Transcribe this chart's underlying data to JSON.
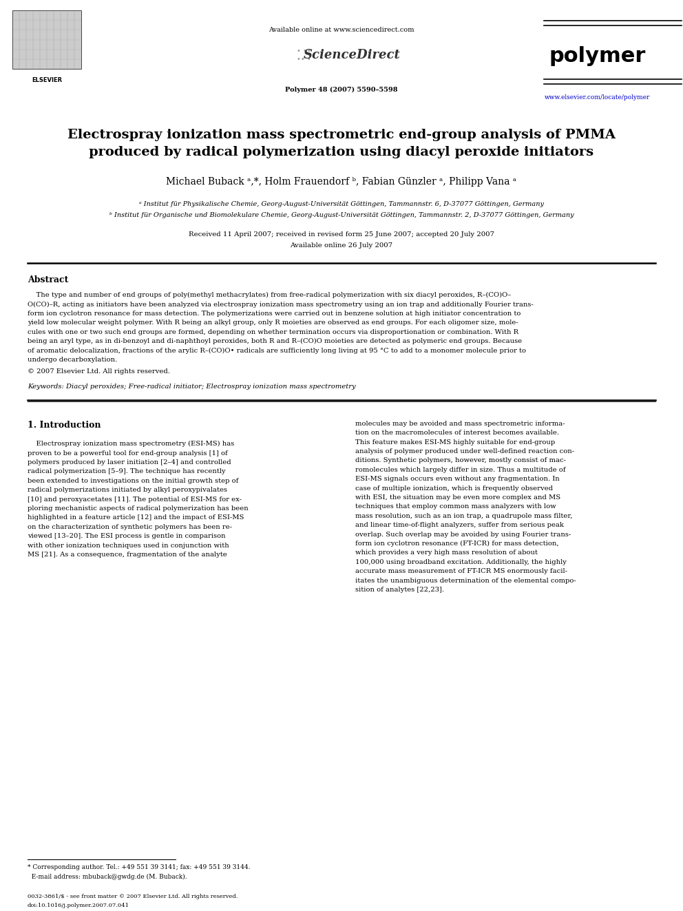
{
  "bg_color": "#ffffff",
  "page_width": 9.92,
  "page_height": 13.23,
  "header_available": "Available online at www.sciencedirect.com",
  "header_sd": "ScienceDirect",
  "header_journal_info": "Polymer 48 (2007) 5590–5598",
  "header_journal_name": "polymer",
  "header_url": "www.elsevier.com/locate/polymer",
  "header_elsevier": "ELSEVIER",
  "title_line1": "Electrospray ionization mass spectrometric end-group analysis of PMMA",
  "title_line2": "produced by radical polymerization using diacyl peroxide initiators",
  "authors": "Michael Buback ᵃ,*, Holm Frauendorf ᵇ, Fabian Günzler ᵃ, Philipp Vana ᵃ",
  "affil_a": "ᵃ Institut für Physikalische Chemie, Georg-August-Universität Göttingen, Tammannstr. 6, D-37077 Göttingen, Germany",
  "affil_b": "ᵇ Institut für Organische und Biomolekulare Chemie, Georg-August-Universität Göttingen, Tammannstr. 2, D-37077 Göttingen, Germany",
  "received": "Received 11 April 2007; received in revised form 25 June 2007; accepted 20 July 2007",
  "available_online": "Available online 26 July 2007",
  "abstract_title": "Abstract",
  "abstract_lines": [
    "    The type and number of end groups of poly(methyl methacrylates) from free-radical polymerization with six diacyl peroxides, R–(CO)O–",
    "O(CO)–R, acting as initiators have been analyzed via electrospray ionization mass spectrometry using an ion trap and additionally Fourier trans-",
    "form ion cyclotron resonance for mass detection. The polymerizations were carried out in benzene solution at high initiator concentration to",
    "yield low molecular weight polymer. With R being an alkyl group, only R moieties are observed as end groups. For each oligomer size, mole-",
    "cules with one or two such end groups are formed, depending on whether termination occurs via disproportionation or combination. With R",
    "being an aryl type, as in di-benzoyl and di-naphthoyl peroxides, both R and R–(CO)O moieties are detected as polymeric end groups. Because",
    "of aromatic delocalization, fractions of the arylic R–(CO)O• radicals are sufficiently long living at 95 °C to add to a monomer molecule prior to",
    "undergo decarboxylation."
  ],
  "copyright": "© 2007 Elsevier Ltd. All rights reserved.",
  "keywords": "Keywords: Diacyl peroxides; Free-radical initiator; Electrospray ionization mass spectrometry",
  "intro_title": "1. Introduction",
  "intro_col1_lines": [
    "    Electrospray ionization mass spectrometry (ESI-MS) has",
    "proven to be a powerful tool for end-group analysis [1] of",
    "polymers produced by laser initiation [2–4] and controlled",
    "radical polymerization [5–9]. The technique has recently",
    "been extended to investigations on the initial growth step of",
    "radical polymerizations initiated by alkyl peroxypivalates",
    "[10] and peroxyacetates [11]. The potential of ESI-MS for ex-",
    "ploring mechanistic aspects of radical polymerization has been",
    "highlighted in a feature article [12] and the impact of ESI-MS",
    "on the characterization of synthetic polymers has been re-",
    "viewed [13–20]. The ESI process is gentle in comparison",
    "with other ionization techniques used in conjunction with",
    "MS [21]. As a consequence, fragmentation of the analyte"
  ],
  "intro_col2_lines": [
    "molecules may be avoided and mass spectrometric informa-",
    "tion on the macromolecules of interest becomes available.",
    "This feature makes ESI-MS highly suitable for end-group",
    "analysis of polymer produced under well-defined reaction con-",
    "ditions. Synthetic polymers, however, mostly consist of mac-",
    "romolecules which largely differ in size. Thus a multitude of",
    "ESI-MS signals occurs even without any fragmentation. In",
    "case of multiple ionization, which is frequently observed",
    "with ESI, the situation may be even more complex and MS",
    "techniques that employ common mass analyzers with low",
    "mass resolution, such as an ion trap, a quadrupole mass filter,",
    "and linear time-of-flight analyzers, suffer from serious peak",
    "overlap. Such overlap may be avoided by using Fourier trans-",
    "form ion cyclotron resonance (FT-ICR) for mass detection,",
    "which provides a very high mass resolution of about",
    "100,000 using broadband excitation. Additionally, the highly",
    "accurate mass measurement of FT-ICR MS enormously facil-",
    "itates the unambiguous determination of the elemental compo-",
    "sition of analytes [22,23]."
  ],
  "footnote_line1": "* Corresponding author. Tel.: +49 551 39 3141; fax: +49 551 39 3144.",
  "footnote_line2": "  E-mail address: mbuback@gwdg.de (M. Buback).",
  "bottom_line1": "0032-3861/$ - see front matter © 2007 Elsevier Ltd. All rights reserved.",
  "bottom_line2": "doi:10.1016/j.polymer.2007.07.041"
}
